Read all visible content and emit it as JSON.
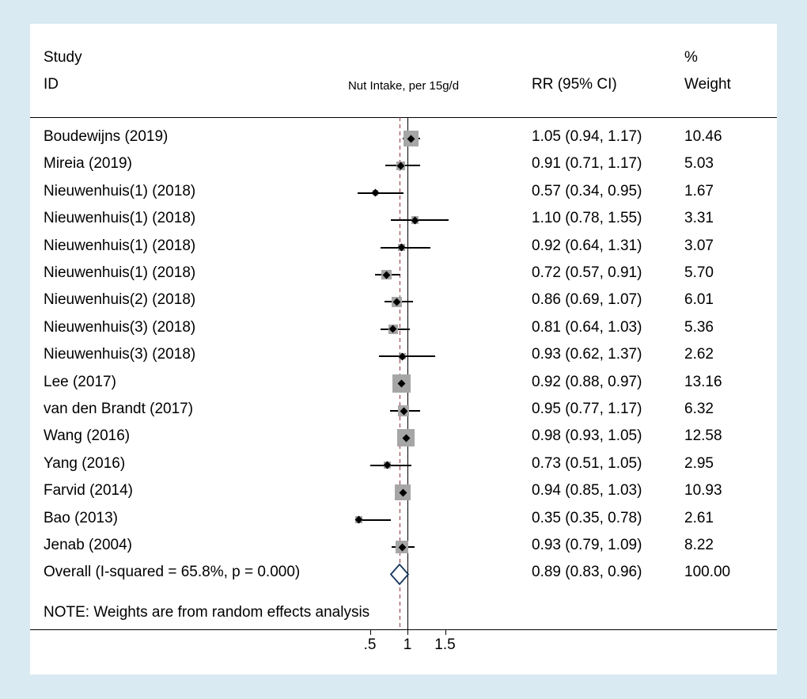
{
  "colors": {
    "background": "#d9eaf2",
    "panel": "#ffffff",
    "axis": "#000000",
    "null_line": "#000000",
    "overall_dashed_line": "#90353b",
    "weight_square": "#a6a6a6",
    "point_marker": "#000000",
    "diamond_outline": "#16365d"
  },
  "header": {
    "col1_line1": "Study",
    "col1_line2": "ID",
    "exposure_label": "Nut Intake, per 15g/d",
    "rr_label": "RR (95% CI)",
    "weight_line1": "%",
    "weight_line2": "Weight"
  },
  "note": "NOTE: Weights are from random effects analysis",
  "chart_data": {
    "type": "forest",
    "title": "",
    "x_axis": {
      "scale": "linear",
      "ticks": [
        0.5,
        1,
        1.5
      ],
      "tick_labels": [
        ".5",
        "1",
        "1.5"
      ],
      "null_line": 1.0,
      "overall_line": 0.89
    },
    "studies": [
      {
        "id": "Boudewijns (2019)",
        "rr": 1.05,
        "ci_low": 0.94,
        "ci_high": 1.17,
        "rr_text": "1.05 (0.94, 1.17)",
        "weight": 10.46,
        "weight_text": "10.46"
      },
      {
        "id": "Mireia  (2019)",
        "rr": 0.91,
        "ci_low": 0.71,
        "ci_high": 1.17,
        "rr_text": "0.91 (0.71, 1.17)",
        "weight": 5.03,
        "weight_text": "5.03"
      },
      {
        "id": "Nieuwenhuis(1) (2018)",
        "rr": 0.57,
        "ci_low": 0.34,
        "ci_high": 0.95,
        "rr_text": "0.57 (0.34, 0.95)",
        "weight": 1.67,
        "weight_text": "1.67"
      },
      {
        "id": "Nieuwenhuis(1) (2018)",
        "rr": 1.1,
        "ci_low": 0.78,
        "ci_high": 1.55,
        "rr_text": "1.10 (0.78, 1.55)",
        "weight": 3.31,
        "weight_text": "3.31"
      },
      {
        "id": "Nieuwenhuis(1) (2018)",
        "rr": 0.92,
        "ci_low": 0.64,
        "ci_high": 1.31,
        "rr_text": "0.92 (0.64, 1.31)",
        "weight": 3.07,
        "weight_text": "3.07"
      },
      {
        "id": "Nieuwenhuis(1) (2018)",
        "rr": 0.72,
        "ci_low": 0.57,
        "ci_high": 0.91,
        "rr_text": "0.72 (0.57, 0.91)",
        "weight": 5.7,
        "weight_text": "5.70"
      },
      {
        "id": "Nieuwenhuis(2) (2018)",
        "rr": 0.86,
        "ci_low": 0.69,
        "ci_high": 1.07,
        "rr_text": "0.86 (0.69, 1.07)",
        "weight": 6.01,
        "weight_text": "6.01"
      },
      {
        "id": "Nieuwenhuis(3) (2018)",
        "rr": 0.81,
        "ci_low": 0.64,
        "ci_high": 1.03,
        "rr_text": "0.81 (0.64, 1.03)",
        "weight": 5.36,
        "weight_text": "5.36"
      },
      {
        "id": "Nieuwenhuis(3) (2018)",
        "rr": 0.93,
        "ci_low": 0.62,
        "ci_high": 1.37,
        "rr_text": "0.93 (0.62, 1.37)",
        "weight": 2.62,
        "weight_text": "2.62"
      },
      {
        "id": "Lee (2017)",
        "rr": 0.92,
        "ci_low": 0.88,
        "ci_high": 0.97,
        "rr_text": "0.92 (0.88, 0.97)",
        "weight": 13.16,
        "weight_text": "13.16"
      },
      {
        "id": "van den Brandt (2017)",
        "rr": 0.95,
        "ci_low": 0.77,
        "ci_high": 1.17,
        "rr_text": "0.95 (0.77, 1.17)",
        "weight": 6.32,
        "weight_text": "6.32"
      },
      {
        "id": "Wang (2016)",
        "rr": 0.98,
        "ci_low": 0.93,
        "ci_high": 1.05,
        "rr_text": "0.98 (0.93, 1.05)",
        "weight": 12.58,
        "weight_text": "12.58"
      },
      {
        "id": "Yang (2016)",
        "rr": 0.73,
        "ci_low": 0.51,
        "ci_high": 1.05,
        "rr_text": "0.73 (0.51, 1.05)",
        "weight": 2.95,
        "weight_text": "2.95"
      },
      {
        "id": "Farvid (2014)",
        "rr": 0.94,
        "ci_low": 0.85,
        "ci_high": 1.03,
        "rr_text": "0.94 (0.85, 1.03)",
        "weight": 10.93,
        "weight_text": "10.93"
      },
      {
        "id": "Bao (2013)",
        "rr": 0.35,
        "ci_low": 0.35,
        "ci_high": 0.78,
        "rr_text": "0.35 (0.35, 0.78)",
        "weight": 2.61,
        "weight_text": "2.61"
      },
      {
        "id": "Jenab (2004)",
        "rr": 0.93,
        "ci_low": 0.79,
        "ci_high": 1.09,
        "rr_text": "0.93 (0.79, 1.09)",
        "weight": 8.22,
        "weight_text": "8.22"
      }
    ],
    "overall": {
      "label": "Overall  (I-squared = 65.8%, p = 0.000)",
      "rr": 0.89,
      "ci_low": 0.83,
      "ci_high": 0.96,
      "rr_text": "0.89 (0.83, 0.96)",
      "weight_text": "100.00"
    }
  }
}
